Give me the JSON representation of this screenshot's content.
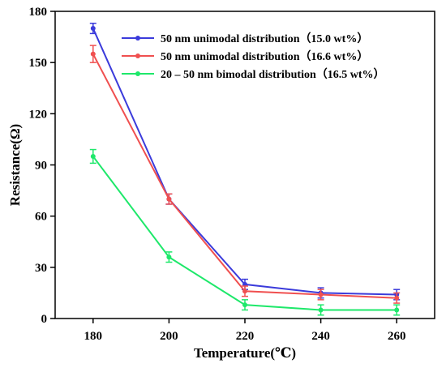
{
  "chart_data": {
    "type": "line",
    "xlabel": "Temperature(℃)",
    "ylabel": "Resistance(Ω)",
    "x": [
      180,
      200,
      220,
      240,
      260
    ],
    "xlim": [
      170,
      270
    ],
    "ylim": [
      0,
      180
    ],
    "xticks": [
      "180",
      "200",
      "220",
      "240",
      "260"
    ],
    "yticks": [
      "0",
      "30",
      "60",
      "90",
      "120",
      "150",
      "180"
    ],
    "grid": false,
    "legend_position": "top-right",
    "error_bars": true,
    "series": [
      {
        "name": "50 nm unimodal distribution（15.0 wt%）",
        "color": "#3b3bdb",
        "values": [
          170,
          70,
          20,
          15,
          14
        ],
        "errors": [
          3,
          3,
          3,
          3,
          3
        ]
      },
      {
        "name": "50 nm unimodal distribution（16.6 wt%）",
        "color": "#f05050",
        "values": [
          155,
          70,
          16,
          14,
          12
        ],
        "errors": [
          5,
          3,
          3,
          3,
          3
        ]
      },
      {
        "name": "20 – 50 nm bimodal distribution（16.5 wt%）",
        "color": "#1ee86a",
        "values": [
          95,
          36,
          8,
          5,
          5
        ],
        "errors": [
          4,
          3,
          3,
          3,
          3
        ]
      }
    ]
  }
}
